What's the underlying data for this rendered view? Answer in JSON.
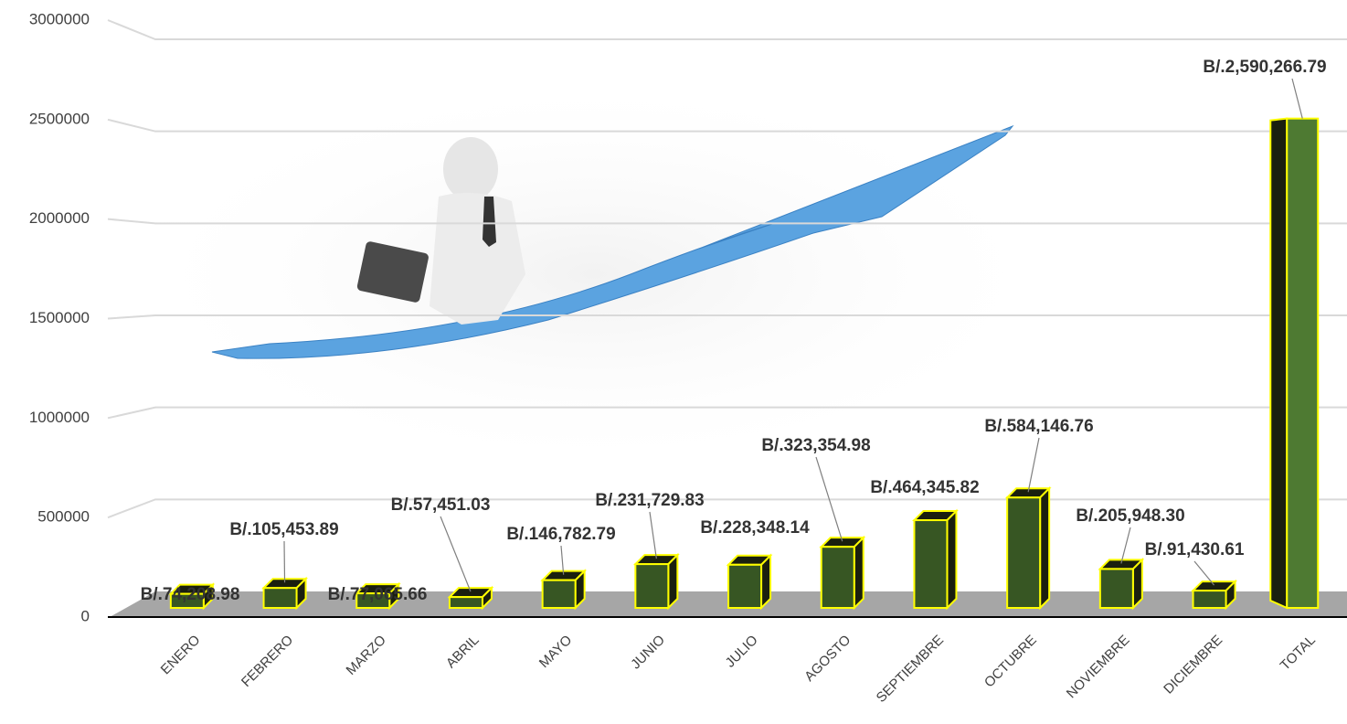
{
  "chart_data": {
    "type": "bar",
    "categories": [
      "ENERO",
      "FEBRERO",
      "MARZO",
      "ABRIL",
      "MAYO",
      "JUNIO",
      "JULIO",
      "AGOSTO",
      "SEPTIEMBRE",
      "OCTUBRE",
      "NOVIEMBRE",
      "DICIEMBRE",
      "TOTAL"
    ],
    "values": [
      74208.98,
      105453.89,
      77065.66,
      57451.03,
      146782.79,
      231729.83,
      228348.14,
      323354.98,
      464345.82,
      584146.76,
      205948.3,
      91430.61,
      2590266.79
    ],
    "value_labels": [
      "B/.74,208.98",
      "B/.105,453.89",
      "B/.77,065.66",
      "B/.57,451.03",
      "B/.146,782.79",
      "B/.231,729.83",
      "B/.228,348.14",
      "B/.323,354.98",
      "B/.464,345.82",
      "B/.584,146.76",
      "B/.205,948.30",
      "B/.91,430.61",
      "B/.2,590,266.79"
    ],
    "color": "#375623",
    "ylim": [
      0,
      3000000
    ],
    "yticks": [
      0,
      500000,
      1000000,
      1500000,
      2000000,
      2500000,
      3000000
    ],
    "grid": true
  }
}
